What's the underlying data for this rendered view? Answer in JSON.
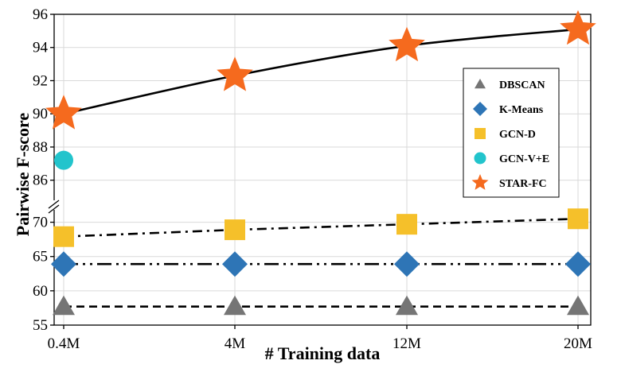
{
  "chart_data": {
    "type": "line",
    "title": "",
    "xlabel": "# Training data",
    "ylabel": "Pairwise F-score",
    "categories": [
      "0.4M",
      "4M",
      "12M",
      "20M"
    ],
    "y_ticks_upper": [
      86,
      88,
      90,
      92,
      94,
      96
    ],
    "y_ticks_lower": [
      55,
      60,
      65,
      70
    ],
    "ylim_upper": [
      84.5,
      96
    ],
    "ylim_lower": [
      55,
      72.5
    ],
    "axis_break": true,
    "grid": true,
    "legend_position": "right",
    "series": [
      {
        "name": "DBSCAN",
        "marker": "triangle",
        "color": "#757575",
        "line": "dashed",
        "line_color": "#000000",
        "values": [
          57.7,
          57.7,
          57.7,
          57.7
        ]
      },
      {
        "name": "K-Means",
        "marker": "diamond",
        "color": "#2E75B6",
        "line": "dash-dot-dot",
        "line_color": "#000000",
        "values": [
          63.9,
          63.9,
          63.9,
          63.9
        ]
      },
      {
        "name": "GCN-D",
        "marker": "square",
        "color": "#F5C02A",
        "line": "dash-dot",
        "line_color": "#000000",
        "values": [
          67.9,
          68.9,
          69.7,
          70.5
        ]
      },
      {
        "name": "GCN-V+E",
        "marker": "circle",
        "color": "#22C4CC",
        "line": "none",
        "line_color": "#000000",
        "values": [
          87.2,
          null,
          null,
          null
        ]
      },
      {
        "name": "STAR-FC",
        "marker": "star",
        "color": "#F56A1E",
        "line": "solid",
        "line_color": "#000000",
        "values": [
          90.0,
          92.3,
          94.1,
          95.1
        ],
        "label_color": "#E5141E"
      }
    ]
  }
}
